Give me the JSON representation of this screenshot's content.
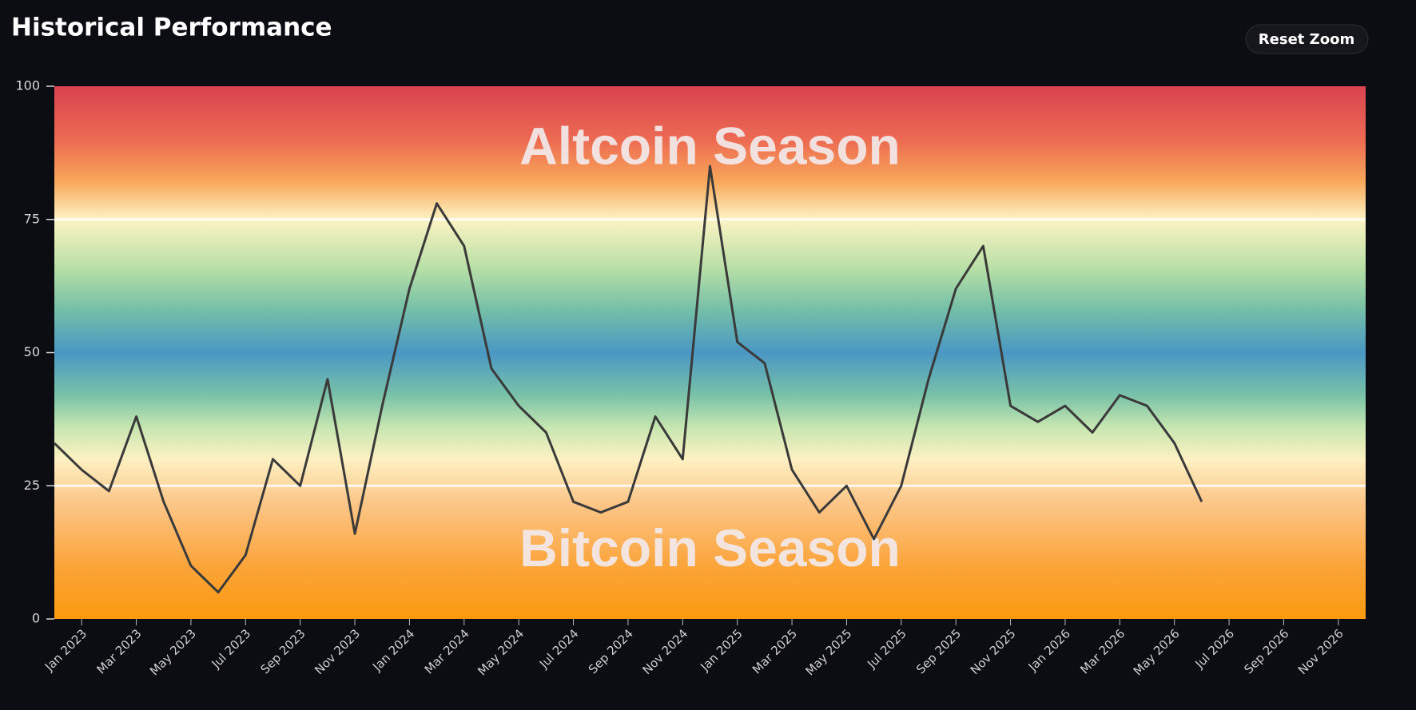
{
  "header": {
    "title": "Historical Performance",
    "button": "Reset Zoom"
  },
  "chart_data": {
    "type": "line",
    "x": [
      "2022-12",
      "2023-01",
      "2023-02",
      "2023-03",
      "2023-04",
      "2023-05",
      "2023-06",
      "2023-07",
      "2023-08",
      "2023-09",
      "2023-10",
      "2023-11",
      "2023-12",
      "2024-01",
      "2024-02",
      "2024-03",
      "2024-04",
      "2024-05",
      "2024-06",
      "2024-07",
      "2024-08",
      "2024-09",
      "2024-10",
      "2024-11",
      "2024-12",
      "2025-01",
      "2025-02",
      "2025-03",
      "2025-04",
      "2025-05",
      "2025-06",
      "2025-07",
      "2025-08",
      "2025-09",
      "2025-10",
      "2025-11",
      "2025-12",
      "2026-01",
      "2026-02",
      "2026-03",
      "2026-04",
      "2026-05",
      "2026-06"
    ],
    "series": [
      {
        "color": "#3a3a3a",
        "values": [
          33,
          28,
          24,
          38,
          22,
          10,
          5,
          12,
          30,
          25,
          45,
          16,
          40,
          62,
          78,
          70,
          47,
          40,
          35,
          22,
          20,
          22,
          38,
          30,
          85,
          52,
          48,
          28,
          20,
          25,
          15,
          25,
          45,
          62,
          70,
          40,
          37,
          40,
          35,
          42,
          40,
          33,
          22
        ]
      }
    ],
    "xlim": [
      "2022-12",
      "2026-12"
    ],
    "xticks": [
      {
        "value": "2023-01",
        "label": "Jan 2023"
      },
      {
        "value": "2023-03",
        "label": "Mar 2023"
      },
      {
        "value": "2023-05",
        "label": "May 2023"
      },
      {
        "value": "2023-07",
        "label": "Jul 2023"
      },
      {
        "value": "2023-09",
        "label": "Sep 2023"
      },
      {
        "value": "2023-11",
        "label": "Nov 2023"
      },
      {
        "value": "2024-01",
        "label": "Jan 2024"
      },
      {
        "value": "2024-03",
        "label": "Mar 2024"
      },
      {
        "value": "2024-05",
        "label": "May 2024"
      },
      {
        "value": "2024-07",
        "label": "Jul 2024"
      },
      {
        "value": "2024-09",
        "label": "Sep 2024"
      },
      {
        "value": "2024-11",
        "label": "Nov 2024"
      },
      {
        "value": "2025-01",
        "label": "Jan 2025"
      },
      {
        "value": "2025-03",
        "label": "Mar 2025"
      },
      {
        "value": "2025-05",
        "label": "May 2025"
      },
      {
        "value": "2025-07",
        "label": "Jul 2025"
      },
      {
        "value": "2025-09",
        "label": "Sep 2025"
      },
      {
        "value": "2025-11",
        "label": "Nov 2025"
      },
      {
        "value": "2026-01",
        "label": "Jan 2026"
      },
      {
        "value": "2026-03",
        "label": "Mar 2026"
      },
      {
        "value": "2026-05",
        "label": "May 2026"
      },
      {
        "value": "2026-07",
        "label": "Jul 2026"
      },
      {
        "value": "2026-09",
        "label": "Sep 2026"
      },
      {
        "value": "2026-11",
        "label": "Nov 2026"
      }
    ],
    "ylim": [
      0,
      100
    ],
    "yticks": [
      0,
      25,
      50,
      75,
      100
    ],
    "reference_lines": [
      25,
      75
    ],
    "annotations": [
      "Altcoin Season",
      "Bitcoin Season"
    ],
    "background_gradient": [
      {
        "value": 100,
        "color": "#d9434f"
      },
      {
        "value": 90,
        "color": "#ec6a52"
      },
      {
        "value": 82,
        "color": "#f9a85a"
      },
      {
        "value": 75,
        "color": "#fdf3c4"
      },
      {
        "value": 66,
        "color": "#b9e0a6"
      },
      {
        "value": 58,
        "color": "#74bfa8"
      },
      {
        "value": 50,
        "color": "#4a97c4"
      },
      {
        "value": 42,
        "color": "#79c2a8"
      },
      {
        "value": 36,
        "color": "#c6e6b0"
      },
      {
        "value": 30,
        "color": "#fdf1c2"
      },
      {
        "value": 22,
        "color": "#fcc78a"
      },
      {
        "value": 10,
        "color": "#fba43a"
      },
      {
        "value": 0,
        "color": "#fb9a0e"
      }
    ]
  }
}
